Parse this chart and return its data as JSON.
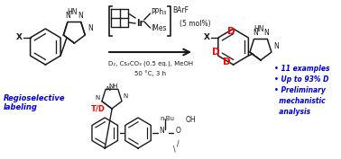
{
  "background_color": "#ffffff",
  "fig_width": 3.78,
  "fig_height": 1.77,
  "dpi": 100,
  "black": "#1a1a1a",
  "red": "#ff0000",
  "blue": "#0000dd",
  "fs": 5.5,
  "bullet_lines": [
    "• 11 examples",
    "• Up to 93% D",
    "• Preliminary",
    "  mechanistic",
    "  analysis"
  ],
  "conditions": [
    "D₂, Cs₂CO₃ (0.5 eq.), MeOH",
    "50 °C, 3 h"
  ],
  "mol_pct": "(5 mol%)",
  "regioselective": "Regioselective\nlabeling",
  "td_text": "T/D",
  "n_bu": "n-Bu",
  "pph3": "PPh₃",
  "imes": "IMes",
  "barf": "BArF",
  "ir": "Ir",
  "hn": "HN",
  "X": "X",
  "D": "D",
  "OH": "OH",
  "NH": "NH",
  "N": "N",
  "O": "O"
}
